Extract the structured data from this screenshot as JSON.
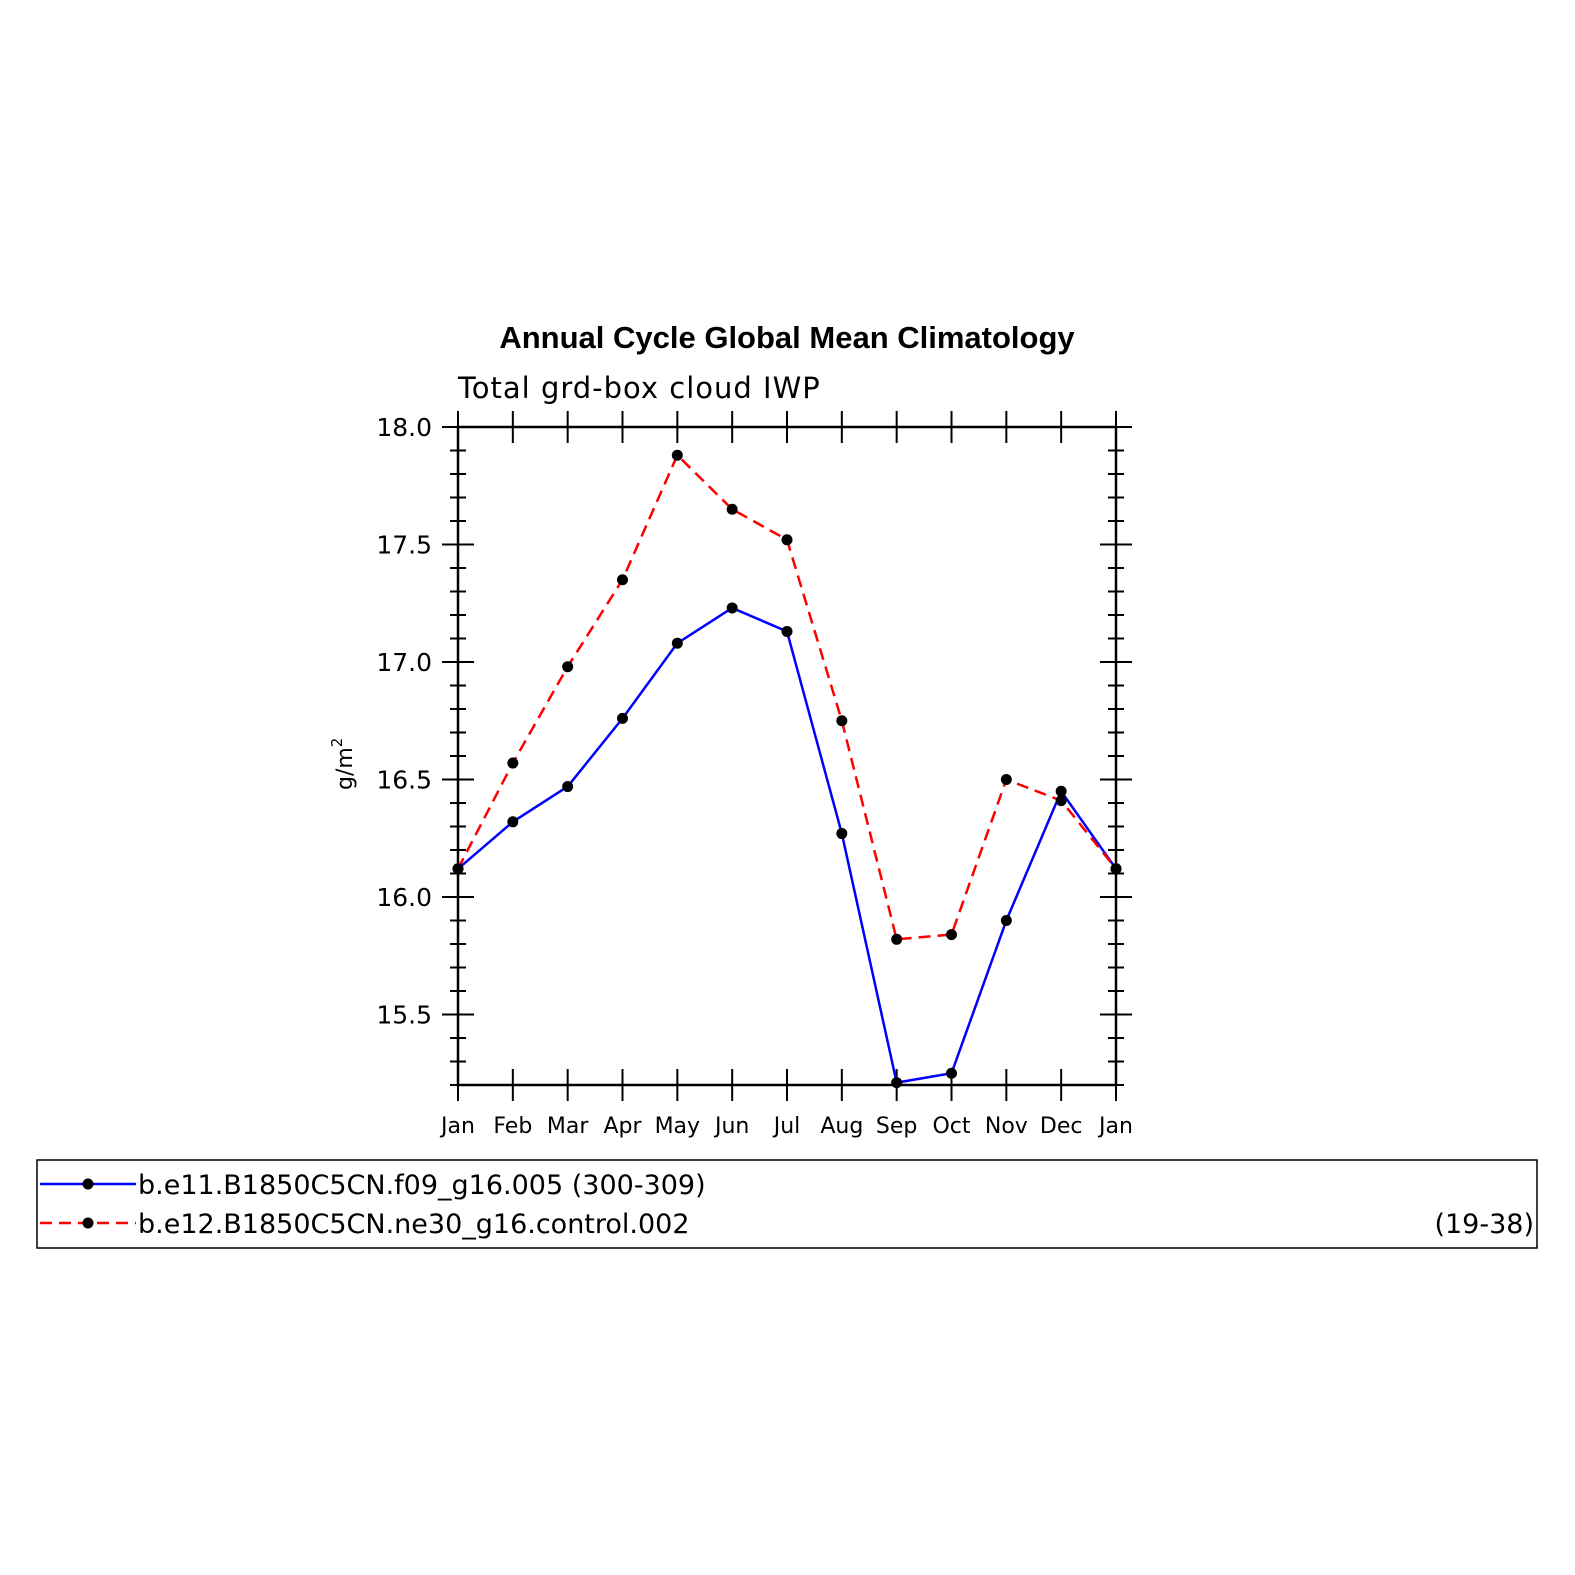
{
  "chart_data": {
    "type": "line",
    "title": "Annual Cycle Global Mean Climatology",
    "subtitle": "Total grd-box cloud IWP",
    "ylabel": "g/m",
    "ylabel_superscript": "2",
    "ylim": [
      15.2,
      18.0
    ],
    "yticks": [
      15.5,
      16.0,
      16.5,
      17.0,
      17.5,
      18.0
    ],
    "ytick_labels": [
      "15.5",
      "16.0",
      "16.5",
      "17.0",
      "17.5",
      "18.0"
    ],
    "categories": [
      "Jan",
      "Feb",
      "Mar",
      "Apr",
      "May",
      "Jun",
      "Jul",
      "Aug",
      "Sep",
      "Oct",
      "Nov",
      "Dec",
      "Jan"
    ],
    "series": [
      {
        "name": "b.e11.B1850C5CN.f09_g16.005",
        "years": "(300-309)",
        "color": "#0000ff",
        "dash": "solid",
        "values": [
          16.12,
          16.32,
          16.47,
          16.76,
          17.08,
          17.23,
          17.13,
          16.27,
          15.21,
          15.25,
          15.9,
          16.45,
          16.12
        ]
      },
      {
        "name": "b.e12.B1850C5CN.ne30_g16.control.002",
        "years": "(19-38)",
        "color": "#ff0000",
        "dash": "dashed",
        "values": [
          16.12,
          16.57,
          16.98,
          17.35,
          17.88,
          17.65,
          17.52,
          16.75,
          15.82,
          15.84,
          16.5,
          16.41,
          16.12
        ]
      }
    ],
    "marker_color": "#000000"
  }
}
